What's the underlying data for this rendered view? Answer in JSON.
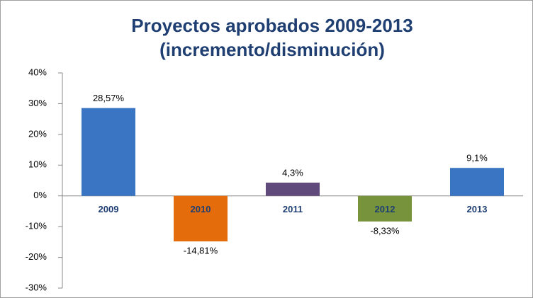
{
  "chart_data": {
    "type": "bar",
    "title": [
      "Proyectos aprobados 2009-2013",
      "(incremento/disminución)"
    ],
    "categories": [
      "2009",
      "2010",
      "2011",
      "2012",
      "2013"
    ],
    "values": [
      28.57,
      -14.81,
      4.3,
      -8.33,
      9.1
    ],
    "value_labels": [
      "28,57%",
      "-14,81%",
      "4,3%",
      "-8,33%",
      "9,1%"
    ],
    "colors": [
      "#3a75c4",
      "#e46c0a",
      "#604a7b",
      "#77933c",
      "#3a75c4"
    ],
    "ylim": [
      -30,
      40
    ],
    "yticks": [
      {
        "value": -30,
        "label": "-30%"
      },
      {
        "value": -20,
        "label": "-20%"
      },
      {
        "value": -10,
        "label": "-10%"
      },
      {
        "value": 0,
        "label": "0%"
      },
      {
        "value": 10,
        "label": "10%"
      },
      {
        "value": 20,
        "label": "20%"
      },
      {
        "value": 30,
        "label": "30%"
      },
      {
        "value": 40,
        "label": "40%"
      }
    ],
    "grid": false
  }
}
